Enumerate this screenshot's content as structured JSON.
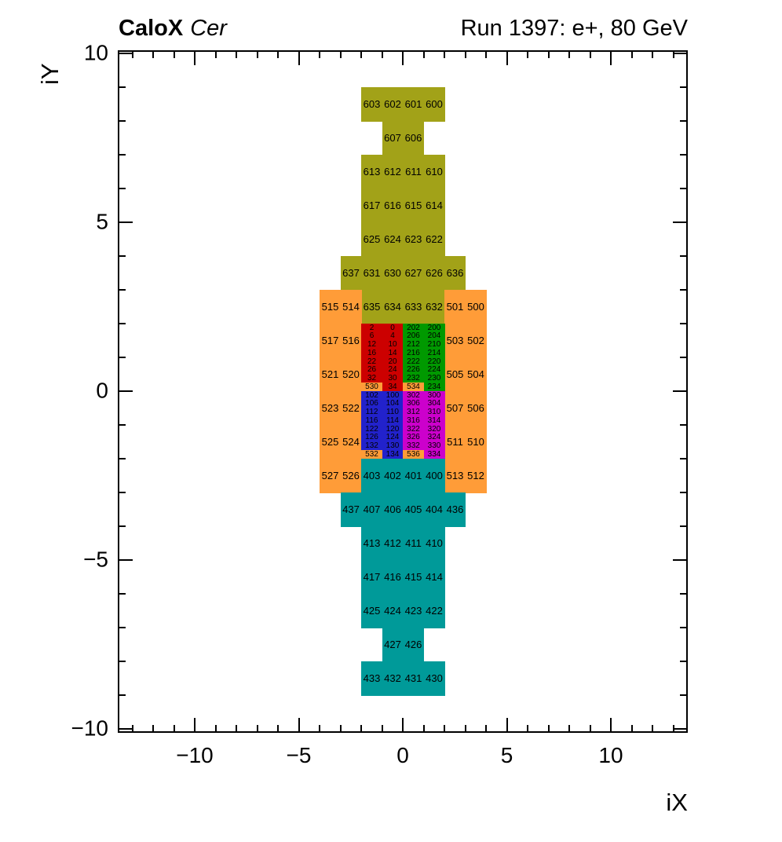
{
  "header": {
    "left_bold": "CaloX",
    "left_italic": "Cer",
    "right": "Run 1397: e+, 80 GeV"
  },
  "chart_data": {
    "type": "heatmap",
    "title_left": "CaloX Cer",
    "title_right": "Run 1397: e+, 80 GeV",
    "xlabel": "iX",
    "ylabel": "iY",
    "xlim": [
      -13.7,
      13.7
    ],
    "ylim": [
      -10.1,
      10.1
    ],
    "grid": false,
    "x_major_ticks": [
      -10,
      -5,
      0,
      5,
      10
    ],
    "x_tick_labels": [
      "−10",
      "−5",
      "0",
      "5",
      "10"
    ],
    "y_major_ticks": [
      -10,
      -5,
      0,
      5,
      10
    ],
    "y_tick_labels": [
      "−10",
      "−5",
      "0",
      "5",
      "10"
    ],
    "minor_tick_step": 1,
    "colors": {
      "olive": "#a2a218",
      "orange": "#ff9c38",
      "red": "#cc0000",
      "green": "#009900",
      "blue": "#2222cc",
      "magenta": "#cc00cc",
      "teal": "#009a99"
    },
    "cell_groups": [
      {
        "color": "olive",
        "h": 1,
        "cells": [
          {
            "t": "603",
            "x": -2,
            "y": 9
          },
          {
            "t": "602",
            "x": -1,
            "y": 9
          },
          {
            "t": "601",
            "x": 0,
            "y": 9
          },
          {
            "t": "600",
            "x": 1,
            "y": 9
          },
          {
            "t": "607",
            "x": -1,
            "y": 8
          },
          {
            "t": "606",
            "x": 0,
            "y": 8
          },
          {
            "t": "613",
            "x": -2,
            "y": 7
          },
          {
            "t": "612",
            "x": -1,
            "y": 7
          },
          {
            "t": "611",
            "x": 0,
            "y": 7
          },
          {
            "t": "610",
            "x": 1,
            "y": 7
          },
          {
            "t": "617",
            "x": -2,
            "y": 6
          },
          {
            "t": "616",
            "x": -1,
            "y": 6
          },
          {
            "t": "615",
            "x": 0,
            "y": 6
          },
          {
            "t": "614",
            "x": 1,
            "y": 6
          },
          {
            "t": "625",
            "x": -2,
            "y": 5
          },
          {
            "t": "624",
            "x": -1,
            "y": 5
          },
          {
            "t": "623",
            "x": 0,
            "y": 5
          },
          {
            "t": "622",
            "x": 1,
            "y": 5
          },
          {
            "t": "637",
            "x": -3,
            "y": 4
          },
          {
            "t": "631",
            "x": -2,
            "y": 4
          },
          {
            "t": "630",
            "x": -1,
            "y": 4
          },
          {
            "t": "627",
            "x": 0,
            "y": 4
          },
          {
            "t": "626",
            "x": 1,
            "y": 4
          },
          {
            "t": "636",
            "x": 2,
            "y": 4
          },
          {
            "t": "635",
            "x": -2,
            "y": 3
          },
          {
            "t": "634",
            "x": -1,
            "y": 3
          },
          {
            "t": "633",
            "x": 0,
            "y": 3
          },
          {
            "t": "632",
            "x": 1,
            "y": 3
          }
        ]
      },
      {
        "color": "orange",
        "h": 1,
        "cells": [
          {
            "t": "515",
            "x": -4,
            "y": 3
          },
          {
            "t": "514",
            "x": -3,
            "y": 3
          },
          {
            "t": "501",
            "x": 2,
            "y": 3
          },
          {
            "t": "500",
            "x": 3,
            "y": 3
          },
          {
            "t": "517",
            "x": -4,
            "y": 2
          },
          {
            "t": "516",
            "x": -3,
            "y": 2
          },
          {
            "t": "503",
            "x": 2,
            "y": 2
          },
          {
            "t": "502",
            "x": 3,
            "y": 2
          },
          {
            "t": "521",
            "x": -4,
            "y": 1
          },
          {
            "t": "520",
            "x": -3,
            "y": 1
          },
          {
            "t": "505",
            "x": 2,
            "y": 1
          },
          {
            "t": "504",
            "x": 3,
            "y": 1
          },
          {
            "t": "523",
            "x": -4,
            "y": 0
          },
          {
            "t": "522",
            "x": -3,
            "y": 0
          },
          {
            "t": "507",
            "x": 2,
            "y": 0
          },
          {
            "t": "506",
            "x": 3,
            "y": 0
          },
          {
            "t": "525",
            "x": -4,
            "y": -1
          },
          {
            "t": "524",
            "x": -3,
            "y": -1
          },
          {
            "t": "511",
            "x": 2,
            "y": -1
          },
          {
            "t": "510",
            "x": 3,
            "y": -1
          },
          {
            "t": "527",
            "x": -4,
            "y": -2
          },
          {
            "t": "526",
            "x": -3,
            "y": -2
          },
          {
            "t": "513",
            "x": 2,
            "y": -2
          },
          {
            "t": "512",
            "x": 3,
            "y": -2
          }
        ]
      },
      {
        "color": "red",
        "h": 0.25,
        "cells": [
          {
            "t": "2",
            "x": -2,
            "y": 2
          },
          {
            "t": "0",
            "x": -1,
            "y": 2
          },
          {
            "t": "6",
            "x": -2,
            "y": 1.75
          },
          {
            "t": "4",
            "x": -1,
            "y": 1.75
          },
          {
            "t": "12",
            "x": -2,
            "y": 1.5
          },
          {
            "t": "10",
            "x": -1,
            "y": 1.5
          },
          {
            "t": "16",
            "x": -2,
            "y": 1.25
          },
          {
            "t": "14",
            "x": -1,
            "y": 1.25
          },
          {
            "t": "22",
            "x": -2,
            "y": 1
          },
          {
            "t": "20",
            "x": -1,
            "y": 1
          },
          {
            "t": "26",
            "x": -2,
            "y": 0.75
          },
          {
            "t": "24",
            "x": -1,
            "y": 0.75
          },
          {
            "t": "32",
            "x": -2,
            "y": 0.5
          },
          {
            "t": "30",
            "x": -1,
            "y": 0.5
          },
          {
            "t": "530",
            "x": -2,
            "y": 0.25,
            "c": "orange"
          },
          {
            "t": "34",
            "x": -1,
            "y": 0.25
          }
        ]
      },
      {
        "color": "green",
        "h": 0.25,
        "cells": [
          {
            "t": "202",
            "x": 0,
            "y": 2
          },
          {
            "t": "200",
            "x": 1,
            "y": 2
          },
          {
            "t": "206",
            "x": 0,
            "y": 1.75
          },
          {
            "t": "204",
            "x": 1,
            "y": 1.75
          },
          {
            "t": "212",
            "x": 0,
            "y": 1.5
          },
          {
            "t": "210",
            "x": 1,
            "y": 1.5
          },
          {
            "t": "216",
            "x": 0,
            "y": 1.25
          },
          {
            "t": "214",
            "x": 1,
            "y": 1.25
          },
          {
            "t": "222",
            "x": 0,
            "y": 1
          },
          {
            "t": "220",
            "x": 1,
            "y": 1
          },
          {
            "t": "226",
            "x": 0,
            "y": 0.75
          },
          {
            "t": "224",
            "x": 1,
            "y": 0.75
          },
          {
            "t": "232",
            "x": 0,
            "y": 0.5
          },
          {
            "t": "230",
            "x": 1,
            "y": 0.5
          },
          {
            "t": "534",
            "x": 0,
            "y": 0.25,
            "c": "orange"
          },
          {
            "t": "234",
            "x": 1,
            "y": 0.25
          }
        ]
      },
      {
        "color": "blue",
        "h": 0.25,
        "cells": [
          {
            "t": "102",
            "x": -2,
            "y": 0
          },
          {
            "t": "100",
            "x": -1,
            "y": 0
          },
          {
            "t": "106",
            "x": -2,
            "y": -0.25
          },
          {
            "t": "104",
            "x": -1,
            "y": -0.25
          },
          {
            "t": "112",
            "x": -2,
            "y": -0.5
          },
          {
            "t": "110",
            "x": -1,
            "y": -0.5
          },
          {
            "t": "116",
            "x": -2,
            "y": -0.75
          },
          {
            "t": "114",
            "x": -1,
            "y": -0.75
          },
          {
            "t": "122",
            "x": -2,
            "y": -1
          },
          {
            "t": "120",
            "x": -1,
            "y": -1
          },
          {
            "t": "126",
            "x": -2,
            "y": -1.25
          },
          {
            "t": "124",
            "x": -1,
            "y": -1.25
          },
          {
            "t": "132",
            "x": -2,
            "y": -1.5
          },
          {
            "t": "130",
            "x": -1,
            "y": -1.5
          },
          {
            "t": "532",
            "x": -2,
            "y": -1.75,
            "c": "orange"
          },
          {
            "t": "134",
            "x": -1,
            "y": -1.75
          }
        ]
      },
      {
        "color": "magenta",
        "h": 0.25,
        "cells": [
          {
            "t": "302",
            "x": 0,
            "y": 0
          },
          {
            "t": "300",
            "x": 1,
            "y": 0
          },
          {
            "t": "306",
            "x": 0,
            "y": -0.25
          },
          {
            "t": "304",
            "x": 1,
            "y": -0.25
          },
          {
            "t": "312",
            "x": 0,
            "y": -0.5
          },
          {
            "t": "310",
            "x": 1,
            "y": -0.5
          },
          {
            "t": "316",
            "x": 0,
            "y": -0.75
          },
          {
            "t": "314",
            "x": 1,
            "y": -0.75
          },
          {
            "t": "322",
            "x": 0,
            "y": -1
          },
          {
            "t": "320",
            "x": 1,
            "y": -1
          },
          {
            "t": "326",
            "x": 0,
            "y": -1.25
          },
          {
            "t": "324",
            "x": 1,
            "y": -1.25
          },
          {
            "t": "332",
            "x": 0,
            "y": -1.5
          },
          {
            "t": "330",
            "x": 1,
            "y": -1.5
          },
          {
            "t": "536",
            "x": 0,
            "y": -1.75,
            "c": "orange"
          },
          {
            "t": "334",
            "x": 1,
            "y": -1.75
          }
        ]
      },
      {
        "color": "teal",
        "h": 1,
        "cells": [
          {
            "t": "403",
            "x": -2,
            "y": -2
          },
          {
            "t": "402",
            "x": -1,
            "y": -2
          },
          {
            "t": "401",
            "x": 0,
            "y": -2
          },
          {
            "t": "400",
            "x": 1,
            "y": -2
          },
          {
            "t": "437",
            "x": -3,
            "y": -3
          },
          {
            "t": "407",
            "x": -2,
            "y": -3
          },
          {
            "t": "406",
            "x": -1,
            "y": -3
          },
          {
            "t": "405",
            "x": 0,
            "y": -3
          },
          {
            "t": "404",
            "x": 1,
            "y": -3
          },
          {
            "t": "436",
            "x": 2,
            "y": -3
          },
          {
            "t": "413",
            "x": -2,
            "y": -4
          },
          {
            "t": "412",
            "x": -1,
            "y": -4
          },
          {
            "t": "411",
            "x": 0,
            "y": -4
          },
          {
            "t": "410",
            "x": 1,
            "y": -4
          },
          {
            "t": "417",
            "x": -2,
            "y": -5
          },
          {
            "t": "416",
            "x": -1,
            "y": -5
          },
          {
            "t": "415",
            "x": 0,
            "y": -5
          },
          {
            "t": "414",
            "x": 1,
            "y": -5
          },
          {
            "t": "425",
            "x": -2,
            "y": -6
          },
          {
            "t": "424",
            "x": -1,
            "y": -6
          },
          {
            "t": "423",
            "x": 0,
            "y": -6
          },
          {
            "t": "422",
            "x": 1,
            "y": -6
          },
          {
            "t": "427",
            "x": -1,
            "y": -7
          },
          {
            "t": "426",
            "x": 0,
            "y": -7
          },
          {
            "t": "433",
            "x": -2,
            "y": -8
          },
          {
            "t": "432",
            "x": -1,
            "y": -8
          },
          {
            "t": "431",
            "x": 0,
            "y": -8
          },
          {
            "t": "430",
            "x": 1,
            "y": -8
          }
        ]
      }
    ]
  }
}
